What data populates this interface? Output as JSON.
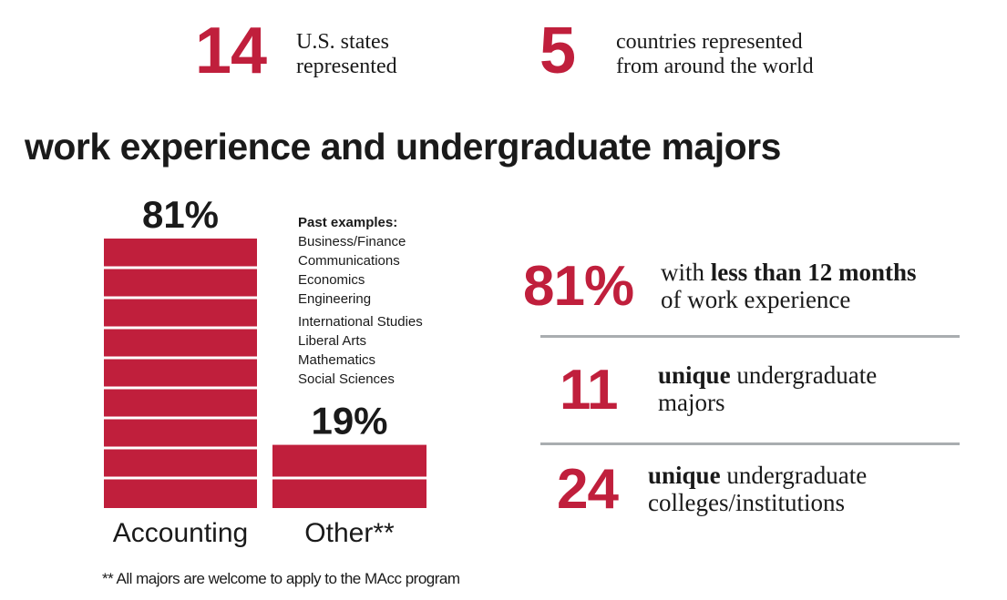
{
  "stats_top": [
    {
      "number": "14",
      "line1": "U.S. states",
      "line2": "represented"
    },
    {
      "number": "5",
      "line1": "countries represented",
      "line2": "from around the world"
    }
  ],
  "heading": "work experience and undergraduate majors",
  "chart_data": {
    "type": "bar",
    "categories": [
      "Accounting",
      "Other**"
    ],
    "values": [
      81,
      19
    ],
    "value_labels": [
      "81%",
      "19%"
    ],
    "color": "#c01f3c"
  },
  "examples": {
    "title": "Past examples:",
    "items": [
      "Business/Finance",
      "Communications",
      "Economics",
      "Engineering",
      "International Studies",
      "Liberal Arts",
      "Mathematics",
      "Social Sciences"
    ]
  },
  "stats_right": [
    {
      "number": "81%",
      "lead": "with",
      "bold": "less than 12 months",
      "line2": "of work experience"
    },
    {
      "number": "11",
      "bold": "unique",
      "rest": "undergraduate",
      "line2": "majors"
    },
    {
      "number": "24",
      "bold": "unique",
      "rest": "undergraduate",
      "line2": "colleges/institutions"
    }
  ],
  "footnote": "** All majors are welcome to apply to the MAcc program"
}
